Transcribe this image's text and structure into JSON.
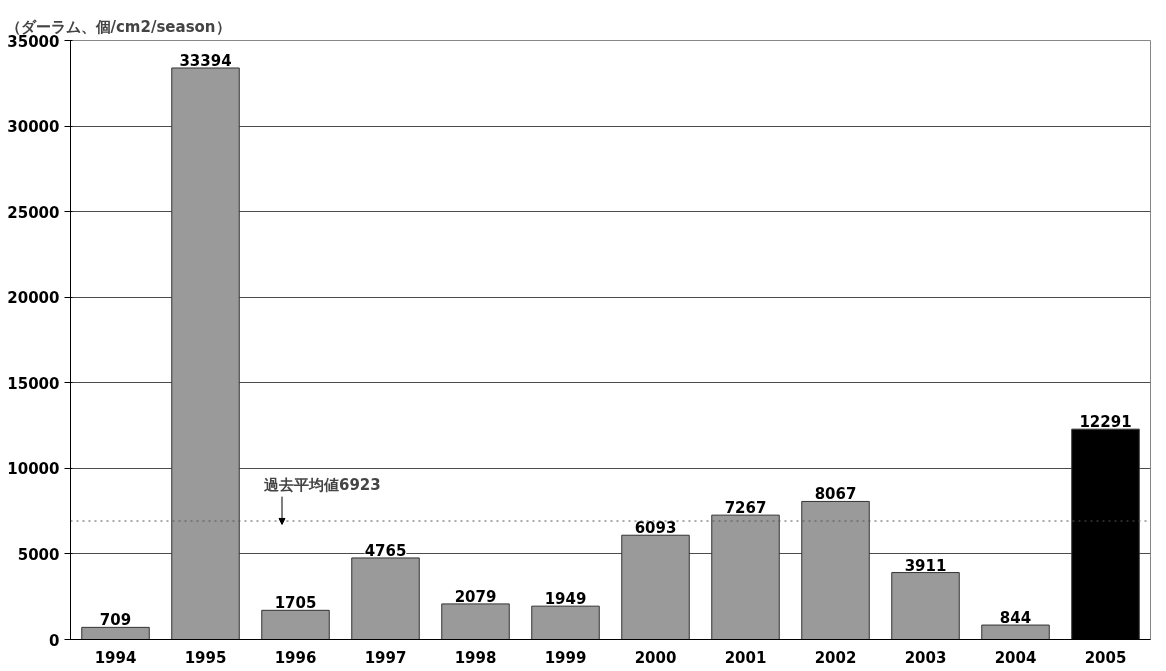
{
  "chart_data": {
    "type": "bar",
    "ylabel": "（ダーラム、個/cm2/season）",
    "categories": [
      "1994",
      "1995",
      "1996",
      "1997",
      "1998",
      "1999",
      "2000",
      "2001",
      "2002",
      "2003",
      "2004",
      "2005"
    ],
    "values": [
      709,
      33394,
      1705,
      4765,
      2079,
      1949,
      6093,
      7267,
      8067,
      3911,
      844,
      12291
    ],
    "colors": [
      "#9a9a9a",
      "#9a9a9a",
      "#9a9a9a",
      "#9a9a9a",
      "#9a9a9a",
      "#9a9a9a",
      "#9a9a9a",
      "#9a9a9a",
      "#9a9a9a",
      "#9a9a9a",
      "#9a9a9a",
      "#000000"
    ],
    "ylim": [
      0,
      35000
    ],
    "yticks": [
      0,
      5000,
      10000,
      15000,
      20000,
      25000,
      30000,
      35000
    ],
    "grid": "y",
    "data_labels": true,
    "ref_lines": [
      {
        "axis": "y",
        "value": 6923,
        "label": "過去平均値6923",
        "color": "#555555",
        "line_style": "dotted"
      }
    ]
  }
}
